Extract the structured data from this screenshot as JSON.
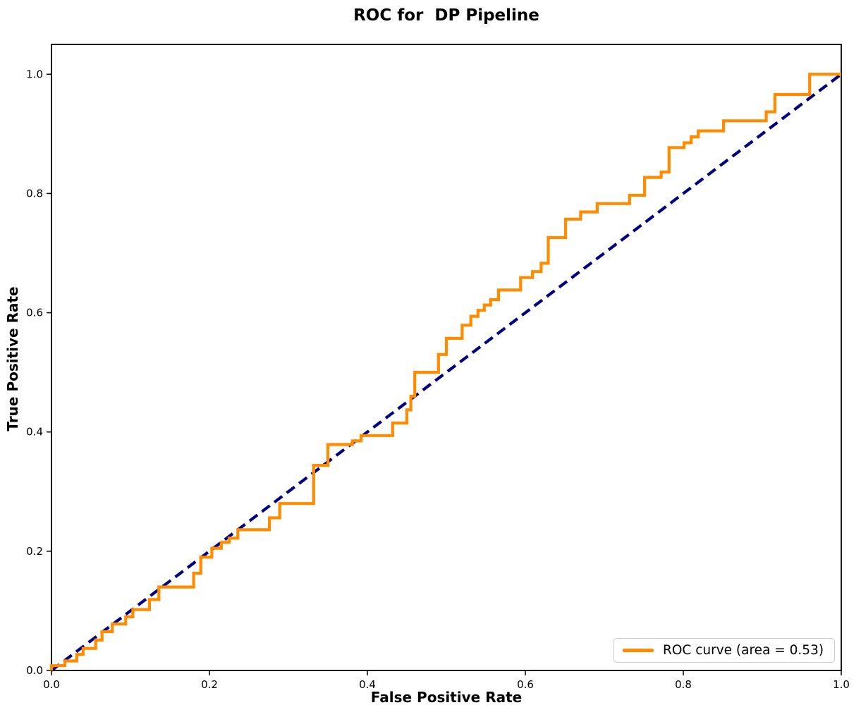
{
  "title": "ROC for  DP Pipeline",
  "x_axis_label": "False Positive Rate",
  "y_axis_label": "True Positive Rate",
  "legend": {
    "roc_label": "ROC curve (area = 0.53)"
  },
  "colors": {
    "roc_curve": "#ff8c00",
    "chance_line": "#000080",
    "axis": "#000000",
    "legend_border": "#cccccc",
    "background": "#ffffff"
  },
  "chart_data": {
    "type": "line",
    "title": "ROC for  DP Pipeline",
    "xlabel": "False Positive Rate",
    "ylabel": "True Positive Rate",
    "xlim": [
      0.0,
      1.0
    ],
    "ylim": [
      0.0,
      1.05
    ],
    "x_ticks": [
      "0.0",
      "0.2",
      "0.4",
      "0.6",
      "0.8",
      "1.0"
    ],
    "y_ticks": [
      "0.0",
      "0.2",
      "0.4",
      "0.6",
      "0.8",
      "1.0"
    ],
    "grid": false,
    "legend_position": "lower right",
    "series": [
      {
        "name": "ROC curve (area = 0.53)",
        "auc": 0.53,
        "style": "solid",
        "color": "#ff8c00",
        "points": [
          [
            0.0,
            0.0
          ],
          [
            0.0,
            0.008
          ],
          [
            0.017,
            0.008
          ],
          [
            0.017,
            0.016
          ],
          [
            0.032,
            0.016
          ],
          [
            0.032,
            0.027
          ],
          [
            0.04,
            0.027
          ],
          [
            0.04,
            0.037
          ],
          [
            0.056,
            0.037
          ],
          [
            0.056,
            0.051
          ],
          [
            0.064,
            0.051
          ],
          [
            0.064,
            0.065
          ],
          [
            0.077,
            0.065
          ],
          [
            0.077,
            0.078
          ],
          [
            0.094,
            0.078
          ],
          [
            0.094,
            0.09
          ],
          [
            0.103,
            0.09
          ],
          [
            0.103,
            0.102
          ],
          [
            0.124,
            0.102
          ],
          [
            0.124,
            0.119
          ],
          [
            0.136,
            0.119
          ],
          [
            0.136,
            0.14
          ],
          [
            0.18,
            0.14
          ],
          [
            0.18,
            0.163
          ],
          [
            0.189,
            0.163
          ],
          [
            0.189,
            0.19
          ],
          [
            0.203,
            0.19
          ],
          [
            0.203,
            0.205
          ],
          [
            0.215,
            0.205
          ],
          [
            0.215,
            0.215
          ],
          [
            0.225,
            0.215
          ],
          [
            0.225,
            0.222
          ],
          [
            0.236,
            0.222
          ],
          [
            0.236,
            0.236
          ],
          [
            0.276,
            0.236
          ],
          [
            0.276,
            0.256
          ],
          [
            0.289,
            0.256
          ],
          [
            0.289,
            0.28
          ],
          [
            0.332,
            0.28
          ],
          [
            0.332,
            0.344
          ],
          [
            0.35,
            0.344
          ],
          [
            0.35,
            0.379
          ],
          [
            0.381,
            0.379
          ],
          [
            0.381,
            0.385
          ],
          [
            0.392,
            0.385
          ],
          [
            0.392,
            0.394
          ],
          [
            0.432,
            0.394
          ],
          [
            0.432,
            0.415
          ],
          [
            0.45,
            0.415
          ],
          [
            0.45,
            0.437
          ],
          [
            0.455,
            0.437
          ],
          [
            0.455,
            0.46
          ],
          [
            0.46,
            0.46
          ],
          [
            0.46,
            0.5
          ],
          [
            0.49,
            0.5
          ],
          [
            0.49,
            0.53
          ],
          [
            0.5,
            0.53
          ],
          [
            0.5,
            0.557
          ],
          [
            0.52,
            0.557
          ],
          [
            0.52,
            0.579
          ],
          [
            0.531,
            0.579
          ],
          [
            0.531,
            0.594
          ],
          [
            0.54,
            0.594
          ],
          [
            0.54,
            0.604
          ],
          [
            0.548,
            0.604
          ],
          [
            0.548,
            0.613
          ],
          [
            0.556,
            0.613
          ],
          [
            0.556,
            0.622
          ],
          [
            0.566,
            0.622
          ],
          [
            0.566,
            0.638
          ],
          [
            0.594,
            0.638
          ],
          [
            0.594,
            0.659
          ],
          [
            0.609,
            0.659
          ],
          [
            0.609,
            0.669
          ],
          [
            0.62,
            0.669
          ],
          [
            0.62,
            0.683
          ],
          [
            0.629,
            0.683
          ],
          [
            0.629,
            0.726
          ],
          [
            0.651,
            0.726
          ],
          [
            0.651,
            0.757
          ],
          [
            0.67,
            0.757
          ],
          [
            0.67,
            0.769
          ],
          [
            0.691,
            0.769
          ],
          [
            0.691,
            0.783
          ],
          [
            0.732,
            0.783
          ],
          [
            0.732,
            0.797
          ],
          [
            0.751,
            0.797
          ],
          [
            0.751,
            0.827
          ],
          [
            0.772,
            0.827
          ],
          [
            0.772,
            0.836
          ],
          [
            0.782,
            0.836
          ],
          [
            0.782,
            0.877
          ],
          [
            0.801,
            0.877
          ],
          [
            0.801,
            0.885
          ],
          [
            0.81,
            0.885
          ],
          [
            0.81,
            0.895
          ],
          [
            0.819,
            0.895
          ],
          [
            0.819,
            0.905
          ],
          [
            0.851,
            0.905
          ],
          [
            0.851,
            0.922
          ],
          [
            0.905,
            0.922
          ],
          [
            0.905,
            0.937
          ],
          [
            0.916,
            0.937
          ],
          [
            0.916,
            0.966
          ],
          [
            0.96,
            0.966
          ],
          [
            0.96,
            1.0
          ],
          [
            1.0,
            1.0
          ]
        ]
      },
      {
        "name": "chance diagonal",
        "style": "dashed",
        "color": "#000080",
        "points": [
          [
            0.0,
            0.0
          ],
          [
            1.0,
            1.0
          ]
        ]
      }
    ]
  }
}
